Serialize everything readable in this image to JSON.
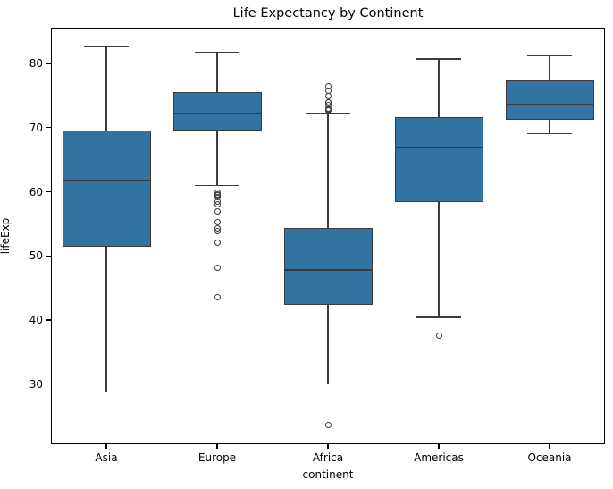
{
  "chart_data": {
    "type": "boxplot",
    "title": "Life Expectancy by Continent",
    "xlabel": "continent",
    "ylabel": "lifeExp",
    "ylim": [
      20.6,
      85.6
    ],
    "yticks": [
      30,
      40,
      50,
      60,
      70,
      80
    ],
    "categories": [
      "Asia",
      "Europe",
      "Africa",
      "Americas",
      "Oceania"
    ],
    "box_fill_color": "#3274a1",
    "box_line_color": "#3c3c3c",
    "legend": "none",
    "grid": "off",
    "series": [
      {
        "category": "Asia",
        "whisker_low": 28.8,
        "q1": 51.4,
        "median": 61.8,
        "q3": 69.5,
        "whisker_high": 82.6,
        "outliers": []
      },
      {
        "category": "Europe",
        "whisker_low": 61.0,
        "q1": 69.6,
        "median": 72.2,
        "q3": 75.5,
        "whisker_high": 81.8,
        "outliers": [
          59.8,
          59.6,
          59.5,
          59.2,
          58.5,
          58.0,
          57.0,
          55.2,
          54.3,
          53.8,
          52.1,
          48.1,
          43.6
        ]
      },
      {
        "category": "Africa",
        "whisker_low": 30.0,
        "q1": 42.4,
        "median": 47.8,
        "q3": 54.4,
        "whisker_high": 72.3,
        "outliers": [
          76.4,
          75.7,
          74.9,
          74.0,
          73.9,
          73.6,
          73.0,
          72.8,
          72.7,
          23.6
        ]
      },
      {
        "category": "Americas",
        "whisker_low": 40.4,
        "q1": 58.4,
        "median": 67.0,
        "q3": 71.7,
        "whisker_high": 80.7,
        "outliers": [
          37.6
        ]
      },
      {
        "category": "Oceania",
        "whisker_low": 69.1,
        "q1": 71.2,
        "median": 73.7,
        "q3": 77.4,
        "whisker_high": 81.2,
        "outliers": []
      }
    ]
  }
}
